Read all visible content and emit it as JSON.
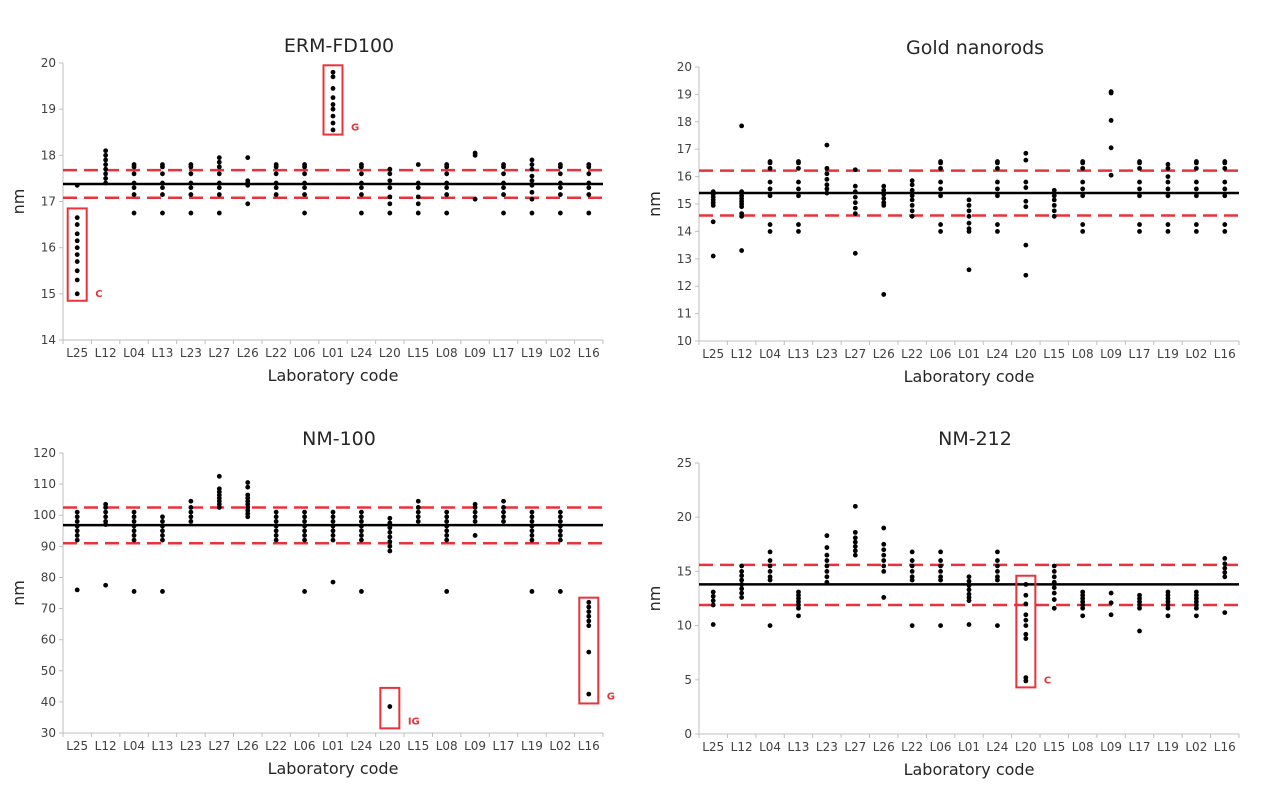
{
  "colors": {
    "points": "#000000",
    "mean_line": "#000000",
    "limit_line": "#e8333a",
    "outlier_box": "#e8333a",
    "axis": "#bfbfbf",
    "text": "#262626"
  },
  "chart_data": [
    {
      "type": "scatter",
      "title": "ERM-FD100",
      "xlabel": "Laboratory code",
      "ylabel": "nm",
      "ylim": [
        14,
        20
      ],
      "yticks": [
        14,
        15,
        16,
        17,
        18,
        19,
        20
      ],
      "categories": [
        "L25",
        "L12",
        "L04",
        "L13",
        "L23",
        "L27",
        "L26",
        "L22",
        "L06",
        "L01",
        "L24",
        "L20",
        "L15",
        "L08",
        "L09",
        "L17",
        "L19",
        "L02",
        "L16"
      ],
      "mean": 17.38,
      "limits": [
        17.08,
        17.68
      ],
      "points": [
        [
          "L25",
          [
            15.0,
            15.3,
            15.5,
            15.7,
            15.85,
            16.0,
            16.15,
            16.3,
            16.5,
            16.65,
            17.35
          ]
        ],
        [
          "L12",
          [
            17.4,
            17.5,
            17.6,
            17.7,
            17.8,
            17.9,
            18.0,
            18.1
          ]
        ],
        [
          "L04",
          [
            16.75,
            17.15,
            17.3,
            17.4,
            17.6,
            17.75,
            17.8
          ]
        ],
        [
          "L13",
          [
            16.75,
            17.15,
            17.3,
            17.4,
            17.6,
            17.75,
            17.8
          ]
        ],
        [
          "L23",
          [
            16.75,
            17.15,
            17.3,
            17.4,
            17.6,
            17.75,
            17.8
          ]
        ],
        [
          "L27",
          [
            16.75,
            17.15,
            17.3,
            17.4,
            17.6,
            17.75,
            17.85,
            17.95
          ]
        ],
        [
          "L26",
          [
            16.95,
            17.35,
            17.4,
            17.45,
            17.95
          ]
        ],
        [
          "L22",
          [
            17.15,
            17.3,
            17.4,
            17.6,
            17.75,
            17.8
          ]
        ],
        [
          "L06",
          [
            16.75,
            17.15,
            17.3,
            17.4,
            17.6,
            17.75,
            17.8
          ]
        ],
        [
          "L01",
          [
            18.55,
            18.7,
            18.85,
            19.0,
            19.1,
            19.25,
            19.45,
            19.7,
            19.8
          ]
        ],
        [
          "L24",
          [
            16.75,
            17.15,
            17.3,
            17.4,
            17.6,
            17.75,
            17.8
          ]
        ],
        [
          "L20",
          [
            16.75,
            16.95,
            17.1,
            17.3,
            17.45,
            17.6,
            17.7
          ]
        ],
        [
          "L15",
          [
            16.75,
            16.95,
            17.1,
            17.3,
            17.4,
            17.8
          ]
        ],
        [
          "L08",
          [
            16.75,
            17.15,
            17.3,
            17.4,
            17.6,
            17.75,
            17.8
          ]
        ],
        [
          "L09",
          [
            17.05,
            18.0,
            18.05
          ]
        ],
        [
          "L17",
          [
            16.75,
            17.15,
            17.3,
            17.4,
            17.6,
            17.75,
            17.8
          ]
        ],
        [
          "L19",
          [
            16.75,
            17.05,
            17.2,
            17.35,
            17.45,
            17.55,
            17.7,
            17.8,
            17.9
          ]
        ],
        [
          "L02",
          [
            16.75,
            17.15,
            17.3,
            17.4,
            17.6,
            17.75,
            17.8
          ]
        ],
        [
          "L16",
          [
            16.75,
            17.15,
            17.3,
            17.4,
            17.6,
            17.75,
            17.8
          ]
        ]
      ],
      "flags": [
        {
          "label": "C",
          "lab": "L25",
          "range": [
            14.85,
            16.85
          ]
        },
        {
          "label": "G",
          "lab": "L01",
          "range": [
            18.45,
            19.95
          ]
        }
      ]
    },
    {
      "type": "scatter",
      "title": "Gold nanorods",
      "xlabel": "Laboratory code",
      "ylabel": "nm",
      "ylim": [
        10,
        20
      ],
      "yticks": [
        10,
        11,
        12,
        13,
        14,
        15,
        16,
        17,
        18,
        19,
        20
      ],
      "categories": [
        "L25",
        "L12",
        "L04",
        "L13",
        "L23",
        "L27",
        "L26",
        "L22",
        "L06",
        "L01",
        "L24",
        "L20",
        "L15",
        "L08",
        "L09",
        "L17",
        "L19",
        "L02",
        "L16"
      ],
      "mean": 15.4,
      "limits": [
        14.58,
        16.22
      ],
      "points": [
        [
          "L25",
          [
            13.1,
            14.35,
            14.95,
            15.05,
            15.15,
            15.25,
            15.35,
            15.45
          ]
        ],
        [
          "L12",
          [
            13.3,
            14.55,
            14.65,
            14.9,
            15.0,
            15.1,
            15.2,
            15.3,
            15.45,
            17.85
          ]
        ],
        [
          "L04",
          [
            14.0,
            14.25,
            15.3,
            15.55,
            15.8,
            16.3,
            16.5,
            16.55
          ]
        ],
        [
          "L13",
          [
            14.0,
            14.25,
            15.3,
            15.55,
            15.8,
            16.3,
            16.5,
            16.55
          ]
        ],
        [
          "L23",
          [
            15.4,
            15.55,
            15.7,
            15.9,
            16.1,
            16.3,
            17.15
          ]
        ],
        [
          "L27",
          [
            13.2,
            14.65,
            14.85,
            15.05,
            15.25,
            15.45,
            15.65,
            16.25
          ]
        ],
        [
          "L26",
          [
            11.7,
            14.95,
            15.05,
            15.2,
            15.35,
            15.5,
            15.65
          ]
        ],
        [
          "L22",
          [
            14.55,
            14.75,
            14.95,
            15.15,
            15.3,
            15.5,
            15.7,
            15.85
          ]
        ],
        [
          "L06",
          [
            14.0,
            14.25,
            15.3,
            15.55,
            15.8,
            16.3,
            16.5,
            16.55
          ]
        ],
        [
          "L01",
          [
            12.6,
            14.0,
            14.1,
            14.3,
            14.55,
            14.75,
            14.95,
            15.15
          ]
        ],
        [
          "L24",
          [
            14.0,
            14.25,
            15.3,
            15.55,
            15.8,
            16.3,
            16.5,
            16.55
          ]
        ],
        [
          "L20",
          [
            12.4,
            13.5,
            14.9,
            15.1,
            15.6,
            15.8,
            16.6,
            16.85
          ]
        ],
        [
          "L15",
          [
            14.55,
            14.75,
            14.95,
            15.15,
            15.3,
            15.5
          ]
        ],
        [
          "L08",
          [
            14.0,
            14.25,
            15.3,
            15.55,
            15.8,
            16.3,
            16.5,
            16.55
          ]
        ],
        [
          "L09",
          [
            16.05,
            17.05,
            18.05,
            19.05,
            19.1
          ]
        ],
        [
          "L17",
          [
            14.0,
            14.25,
            15.3,
            15.55,
            15.8,
            16.3,
            16.5,
            16.55
          ]
        ],
        [
          "L19",
          [
            14.0,
            14.25,
            15.3,
            15.55,
            15.8,
            16.0,
            16.3,
            16.45
          ]
        ],
        [
          "L02",
          [
            14.0,
            14.25,
            15.3,
            15.55,
            15.8,
            16.3,
            16.5,
            16.55
          ]
        ],
        [
          "L16",
          [
            14.0,
            14.25,
            15.3,
            15.55,
            15.8,
            16.3,
            16.5,
            16.55
          ]
        ]
      ],
      "flags": []
    },
    {
      "type": "scatter",
      "title": "NM-100",
      "xlabel": "Laboratory code",
      "ylabel": "nm",
      "ylim": [
        30,
        120
      ],
      "yticks": [
        30,
        40,
        50,
        60,
        70,
        80,
        90,
        100,
        110,
        120
      ],
      "categories": [
        "L25",
        "L12",
        "L04",
        "L13",
        "L23",
        "L27",
        "L26",
        "L22",
        "L06",
        "L01",
        "L24",
        "L20",
        "L15",
        "L08",
        "L09",
        "L17",
        "L19",
        "L02",
        "L16"
      ],
      "mean": 96.8,
      "limits": [
        91.0,
        102.5
      ],
      "points": [
        [
          "L25",
          [
            76,
            92,
            93.5,
            95,
            96.5,
            98,
            99.5,
            101
          ]
        ],
        [
          "L12",
          [
            77.5,
            97,
            98,
            99.5,
            101,
            102.5,
            103.5
          ]
        ],
        [
          "L04",
          [
            75.5,
            92,
            93.5,
            95,
            96.5,
            98,
            99.5,
            101
          ]
        ],
        [
          "L13",
          [
            75.5,
            92,
            93.5,
            95,
            96.5,
            98,
            99.5
          ]
        ],
        [
          "L23",
          [
            98,
            99.5,
            101,
            102.5,
            104.5
          ]
        ],
        [
          "L27",
          [
            102.5,
            103.5,
            104.5,
            105.5,
            106.5,
            107.5,
            108.5,
            112.5
          ]
        ],
        [
          "L26",
          [
            99.5,
            100.5,
            101.5,
            102.5,
            103.5,
            104.5,
            105.5,
            106.5,
            109,
            110.5
          ]
        ],
        [
          "L22",
          [
            92,
            93.5,
            95,
            96.5,
            98,
            99.5,
            101
          ]
        ],
        [
          "L06",
          [
            75.5,
            92,
            93.5,
            95,
            96.5,
            98,
            99.5,
            101
          ]
        ],
        [
          "L01",
          [
            78.5,
            92,
            93.5,
            95,
            96.5,
            98,
            99.5,
            101
          ]
        ],
        [
          "L24",
          [
            75.5,
            92,
            93.5,
            95,
            96.5,
            98,
            99.5,
            101
          ]
        ],
        [
          "L20",
          [
            38.5,
            88.5,
            90,
            91.5,
            93,
            94.5,
            96,
            97.5,
            99
          ]
        ],
        [
          "L15",
          [
            98,
            99.5,
            101,
            102.5,
            104.5
          ]
        ],
        [
          "L08",
          [
            75.5,
            92,
            93.5,
            95,
            96.5,
            98,
            99.5,
            101
          ]
        ],
        [
          "L09",
          [
            93.5,
            98,
            99.5,
            101,
            102.5,
            103.5
          ]
        ],
        [
          "L17",
          [
            98,
            99.5,
            101,
            102.5,
            104.5
          ]
        ],
        [
          "L19",
          [
            75.5,
            92,
            93.5,
            95,
            96.5,
            98,
            99.5,
            101
          ]
        ],
        [
          "L02",
          [
            75.5,
            92,
            93.5,
            95,
            96.5,
            98,
            99.5,
            101
          ]
        ],
        [
          "L16",
          [
            42.5,
            56,
            64.5,
            66,
            67.5,
            69,
            70.5,
            72
          ]
        ]
      ],
      "flags": [
        {
          "label": "IG",
          "lab": "L20",
          "range": [
            31.5,
            44.5
          ]
        },
        {
          "label": "G",
          "lab": "L16",
          "range": [
            39.5,
            73.5
          ]
        }
      ]
    },
    {
      "type": "scatter",
      "title": "NM-212",
      "xlabel": "Laboratory code",
      "ylabel": "nm",
      "ylim": [
        0,
        25
      ],
      "yticks": [
        0,
        5,
        10,
        15,
        20,
        25
      ],
      "categories": [
        "L25",
        "L12",
        "L04",
        "L13",
        "L23",
        "L27",
        "L26",
        "L22",
        "L06",
        "L01",
        "L24",
        "L20",
        "L15",
        "L08",
        "L09",
        "L17",
        "L19",
        "L02",
        "L16"
      ],
      "mean": 13.8,
      "limits": [
        11.9,
        15.6
      ],
      "points": [
        [
          "L25",
          [
            10.1,
            11.9,
            12.3,
            12.7,
            13.1
          ]
        ],
        [
          "L12",
          [
            12.6,
            13.0,
            13.4,
            13.8,
            14.2,
            14.6,
            15.0,
            15.5
          ]
        ],
        [
          "L04",
          [
            10.0,
            14.2,
            14.5,
            15.0,
            15.5,
            16.0,
            16.8
          ]
        ],
        [
          "L13",
          [
            10.9,
            11.6,
            11.9,
            12.2,
            12.5,
            12.8,
            13.1
          ]
        ],
        [
          "L23",
          [
            14.0,
            14.5,
            15.0,
            15.5,
            16.0,
            16.5,
            17.2,
            18.3
          ]
        ],
        [
          "L27",
          [
            16.5,
            16.9,
            17.3,
            17.7,
            18.1,
            18.6,
            21.0
          ]
        ],
        [
          "L26",
          [
            12.6,
            15.0,
            15.5,
            16.0,
            16.5,
            17.0,
            17.5,
            19.0
          ]
        ],
        [
          "L22",
          [
            10.0,
            14.2,
            14.5,
            15.0,
            15.5,
            16.0,
            16.8
          ]
        ],
        [
          "L06",
          [
            10.0,
            14.2,
            14.5,
            15.0,
            15.5,
            16.0,
            16.8
          ]
        ],
        [
          "L01",
          [
            10.1,
            12.3,
            12.6,
            12.9,
            13.3,
            13.7,
            14.1,
            14.5
          ]
        ],
        [
          "L24",
          [
            10.0,
            14.2,
            14.5,
            15.0,
            15.5,
            16.0,
            16.8
          ]
        ],
        [
          "L20",
          [
            4.9,
            5.2,
            8.8,
            9.2,
            10.0,
            10.5,
            11.0,
            12.0,
            12.8,
            13.8
          ]
        ],
        [
          "L15",
          [
            11.6,
            12.4,
            13.0,
            13.5,
            14.0,
            14.5,
            15.0,
            15.5
          ]
        ],
        [
          "L08",
          [
            10.9,
            11.6,
            11.9,
            12.2,
            12.5,
            12.8,
            13.1
          ]
        ],
        [
          "L09",
          [
            11.0,
            12.1,
            13.0
          ]
        ],
        [
          "L17",
          [
            9.5,
            11.6,
            11.9,
            12.2,
            12.5,
            12.8
          ]
        ],
        [
          "L19",
          [
            10.9,
            11.6,
            11.9,
            12.2,
            12.5,
            12.8,
            13.1
          ]
        ],
        [
          "L02",
          [
            10.9,
            11.6,
            11.9,
            12.2,
            12.5,
            12.8,
            13.1
          ]
        ],
        [
          "L16",
          [
            11.2,
            14.5,
            14.9,
            15.3,
            15.7,
            16.2
          ]
        ]
      ],
      "flags": [
        {
          "label": "C",
          "lab": "L20",
          "range": [
            4.3,
            14.6
          ]
        }
      ]
    }
  ]
}
